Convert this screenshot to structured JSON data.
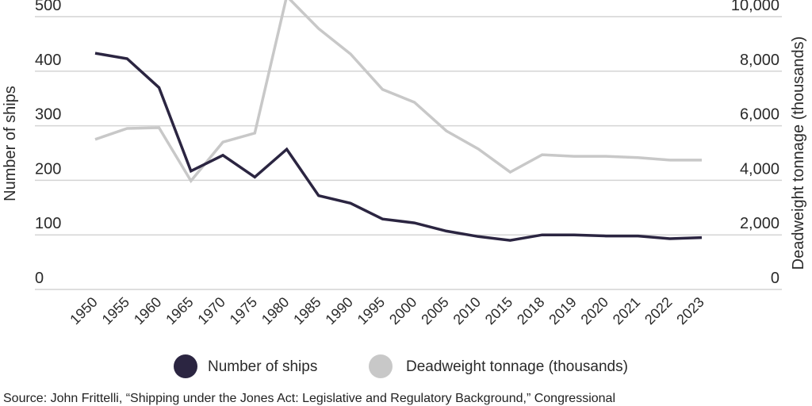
{
  "chart_data": {
    "type": "line",
    "title": "",
    "x": [
      "1950",
      "1955",
      "1960",
      "1965",
      "1970",
      "1975",
      "1980",
      "1985",
      "1990",
      "1995",
      "2000",
      "2005",
      "2010",
      "2015",
      "2018",
      "2019",
      "2020",
      "2021",
      "2022",
      "2023"
    ],
    "series": [
      {
        "name": "Number of ships",
        "axis": "left",
        "color": "#2b2541",
        "values": [
          433,
          423,
          370,
          217,
          246,
          206,
          257,
          172,
          158,
          129,
          122,
          107,
          97,
          90,
          100,
          100,
          98,
          98,
          93,
          95
        ]
      },
      {
        "name": "Deadweight tonnage (thousands)",
        "axis": "right",
        "color": "#c8c8c8",
        "values": [
          5500,
          5900,
          5930,
          3980,
          5400,
          5730,
          10750,
          9560,
          8630,
          7330,
          6860,
          5810,
          5150,
          4300,
          4940,
          4880,
          4880,
          4830,
          4740,
          4740
        ]
      }
    ],
    "ylabel": "Number of ships",
    "ylabel_right": "Deadweight tonnage (thousands)",
    "ylim": [
      0,
      500
    ],
    "ylim_right": [
      0,
      10000
    ],
    "yticks": [
      "0",
      "100",
      "200",
      "300",
      "400",
      "500"
    ],
    "yticks_right": [
      "0",
      "2,000",
      "4,000",
      "6,000",
      "8,000",
      "10,000"
    ],
    "grid": true,
    "legend_position": "bottom"
  },
  "source": "Source: John Frittelli, “Shipping under the Jones Act: Legislative and Regulatory Background,” Congressional"
}
